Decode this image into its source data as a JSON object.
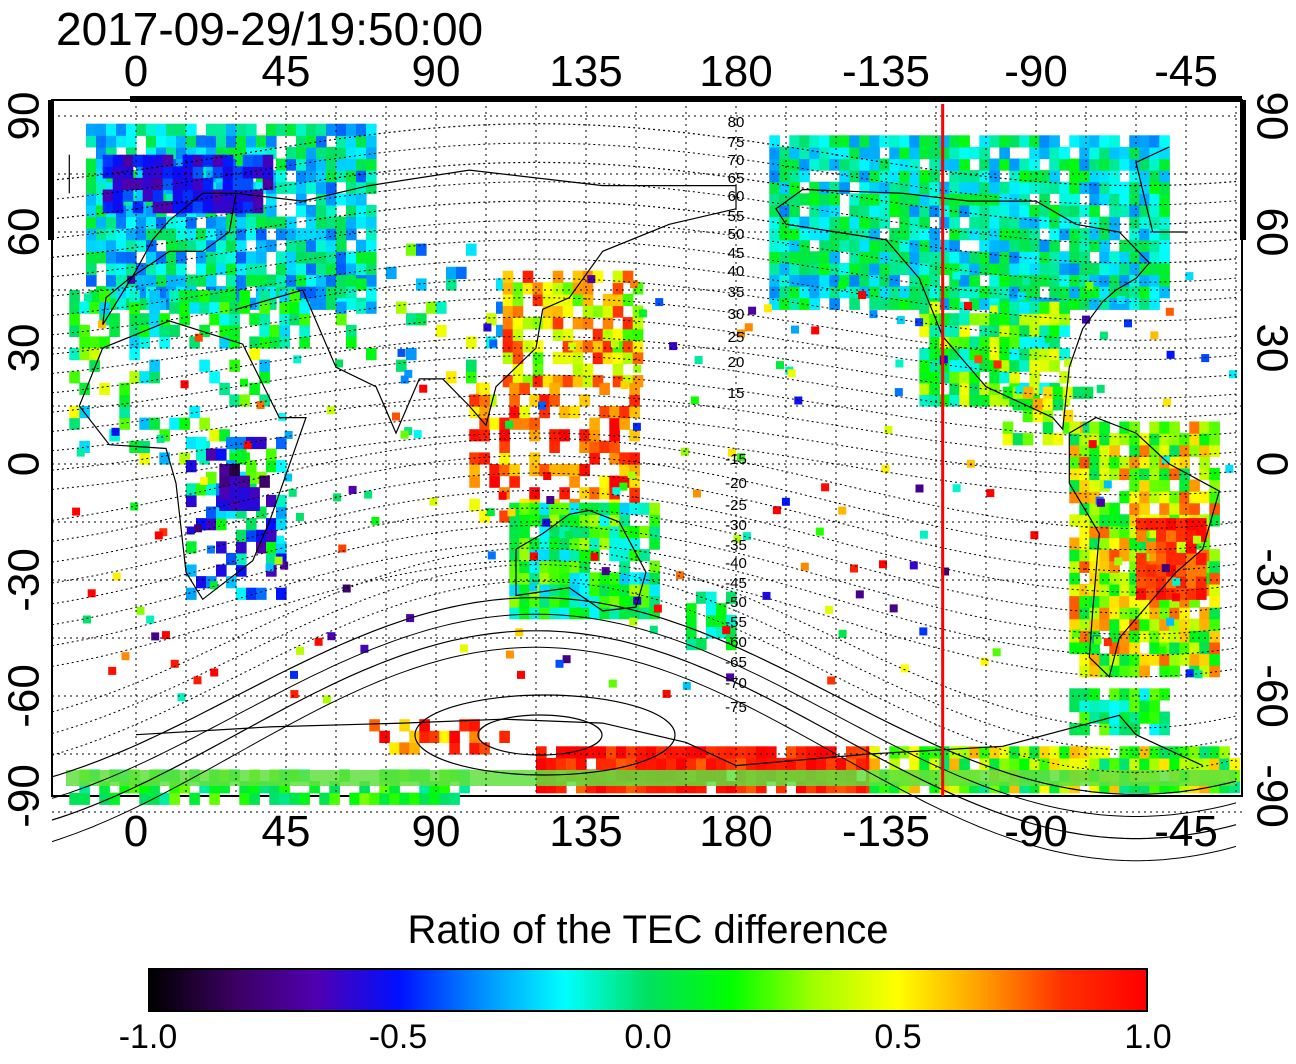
{
  "timestamp": "2017-09-29/19:50:00",
  "lon_ticks_top": [
    "0",
    "45",
    "90",
    "135",
    "180",
    "-135",
    "-90",
    "-45"
  ],
  "lon_ticks_bottom": [
    "0",
    "45",
    "90",
    "135",
    "180",
    "-135",
    "-90",
    "-45"
  ],
  "lat_ticks_left": [
    "90",
    "60",
    "30",
    "0",
    "-30",
    "-60",
    "-90"
  ],
  "lat_ticks_right": [
    "90",
    "60",
    "30",
    "0",
    "-30",
    "-60",
    "-90"
  ],
  "magnetic_lat_labels": [
    "80",
    "75",
    "70",
    "65",
    "60",
    "55",
    "50",
    "45",
    "40",
    "35",
    "30",
    "25",
    "20",
    "15",
    "-15",
    "-20",
    "-25",
    "-30",
    "-35",
    "-40",
    "-45",
    "-50",
    "-55",
    "-60",
    "-65",
    "-70",
    "-75"
  ],
  "red_line_longitude": -118,
  "colorbar": {
    "title": "Ratio of the TEC difference",
    "labels": [
      "-1.0",
      "-0.5",
      "0.0",
      "0.5",
      "1.0"
    ],
    "range": [
      -1.0,
      1.0
    ],
    "colors": [
      "#000000",
      "#3a0060",
      "#5000b0",
      "#0010ff",
      "#0090ff",
      "#00ffff",
      "#00e060",
      "#00ff00",
      "#a0ff00",
      "#ffff00",
      "#ffa000",
      "#ff3000",
      "#ff0000"
    ]
  },
  "colors": {
    "red_line": "#ff0000",
    "coast": "#000000",
    "grid": "#000000"
  }
}
